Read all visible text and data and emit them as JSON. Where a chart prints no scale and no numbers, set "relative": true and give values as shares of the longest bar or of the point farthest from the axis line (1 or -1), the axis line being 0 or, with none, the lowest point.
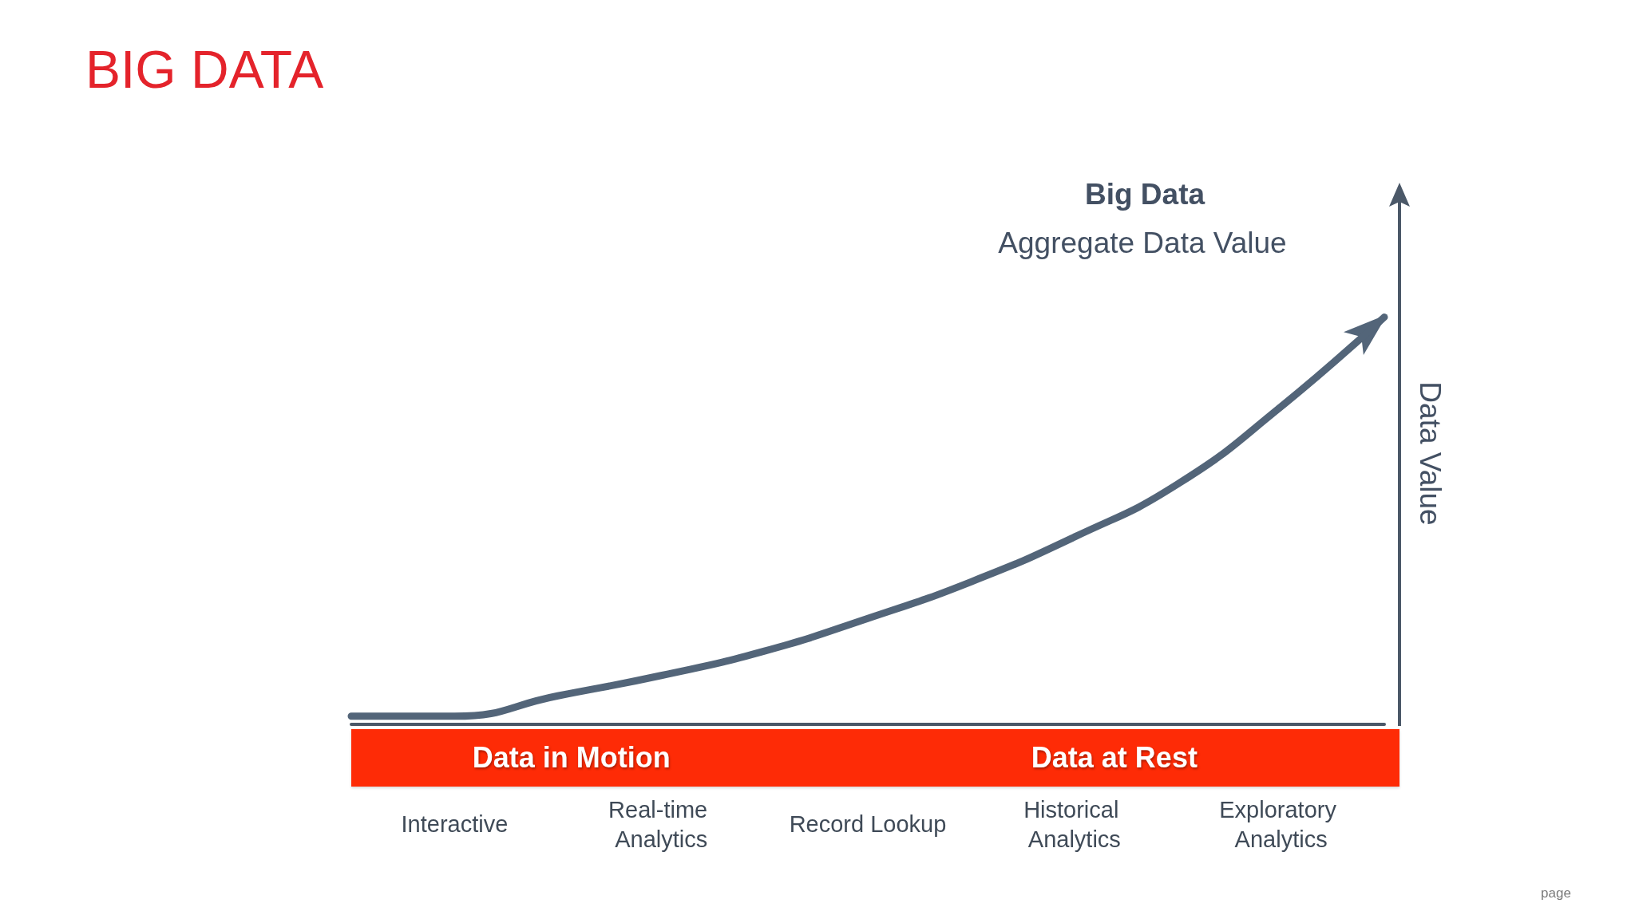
{
  "chart_data": {
    "type": "line",
    "title": "BIG DATA",
    "ylabel": "Data Value",
    "categories": [
      null,
      "Interactive",
      null,
      "Real-time Analytics",
      null,
      "Record Lookup",
      null,
      "Historical Analytics",
      null,
      "Exploratory Analytics",
      null
    ],
    "series": [
      {
        "color": "#536579",
        "values": [
          0.02,
          0.02,
          0.07,
          0.12,
          0.18,
          0.26,
          0.35,
          0.46,
          0.59,
          0.78,
          1
        ]
      }
    ],
    "relative": true,
    "marker": "none",
    "annotations": [
      "Big Data",
      "Aggregate Data Value",
      "Data in Motion",
      "Data at Rest",
      "page"
    ]
  }
}
